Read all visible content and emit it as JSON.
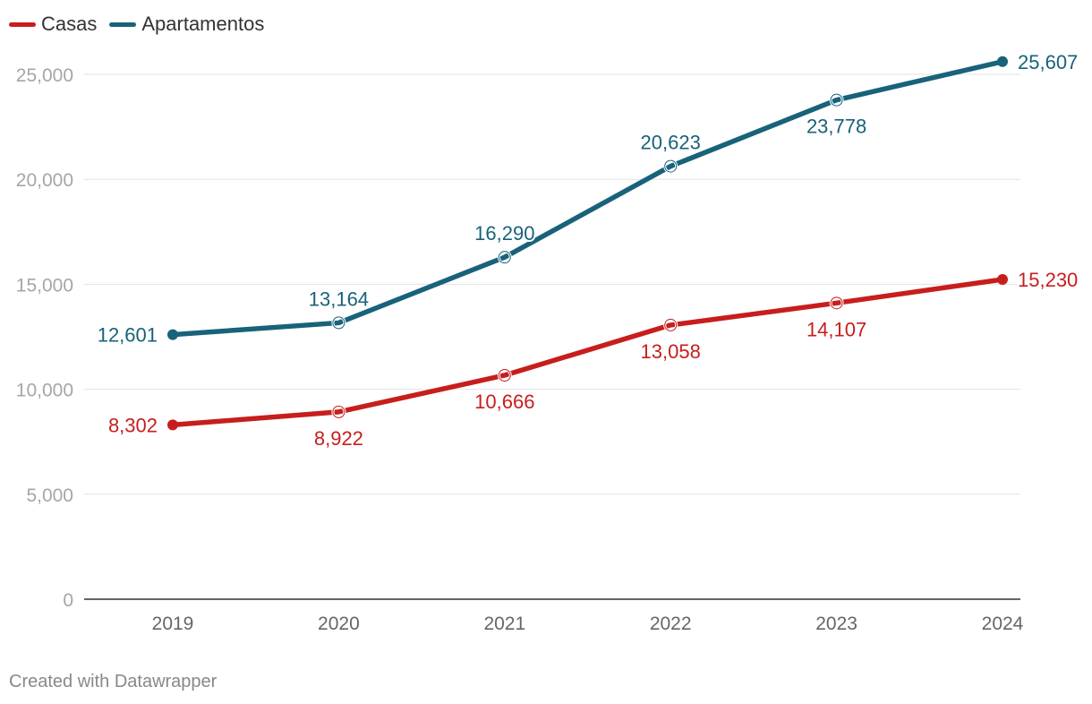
{
  "chart_data": {
    "type": "line",
    "categories": [
      "2019",
      "2020",
      "2021",
      "2022",
      "2023",
      "2024"
    ],
    "series": [
      {
        "name": "Casas",
        "color": "#c71e1d",
        "values": [
          8302,
          8922,
          10666,
          13058,
          14107,
          15230
        ],
        "labels": [
          "8,302",
          "8,922",
          "10,666",
          "13,058",
          "14,107",
          "15,230"
        ]
      },
      {
        "name": "Apartamentos",
        "color": "#18627a",
        "values": [
          12601,
          13164,
          16290,
          20623,
          23778,
          25607
        ],
        "labels": [
          "12,601",
          "13,164",
          "16,290",
          "20,623",
          "23,778",
          "25,607"
        ]
      }
    ],
    "yticks": [
      0,
      5000,
      10000,
      15000,
      20000,
      25000
    ],
    "ytick_labels": [
      "0",
      "5,000",
      "10,000",
      "15,000",
      "20,000",
      "25,000"
    ],
    "ylim": [
      0,
      25000
    ],
    "title": "",
    "xlabel": "",
    "ylabel": "",
    "grid": true,
    "legend": "top-left"
  },
  "credit": "Created with Datawrapper"
}
